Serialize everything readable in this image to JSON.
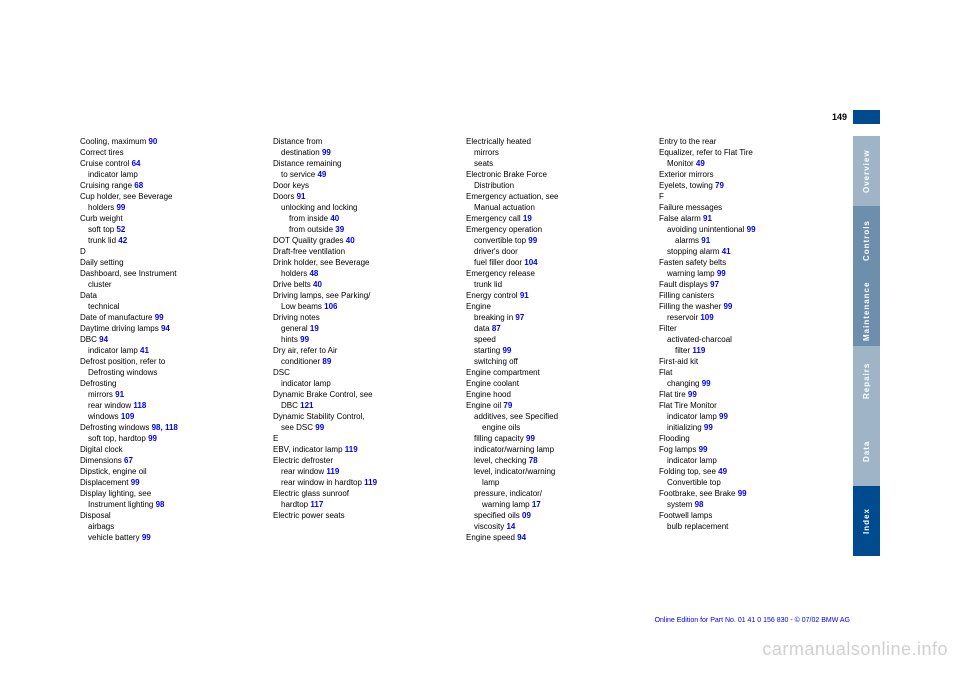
{
  "page_number": "149",
  "side_tabs": [
    "Overview",
    "Controls",
    "Maintenance",
    "Repairs",
    "Data",
    "Index"
  ],
  "columns": [
    [
      {
        "t": "Cooling, maximum",
        "p": "90",
        "s": 0
      },
      {
        "t": "Correct tires",
        "p": "",
        "s": 0
      },
      {
        "t": "Cruise control",
        "p": "64",
        "s": 0
      },
      {
        "t": "indicator lamp",
        "p": "",
        "s": 1
      },
      {
        "t": "Cruising range",
        "p": "68",
        "s": 0
      },
      {
        "t": "Cup holder, see Beverage",
        "p": "",
        "s": 0
      },
      {
        "t": "holders",
        "p": "99",
        "s": 1
      },
      {
        "t": "Curb weight",
        "p": "",
        "s": 0
      },
      {
        "t": "soft top",
        "p": "52",
        "s": 1
      },
      {
        "t": "trunk lid",
        "p": "42",
        "s": 1
      },
      {
        "t": "",
        "p": "",
        "s": 0
      },
      {
        "t": "D",
        "p": "",
        "s": 0
      },
      {
        "t": "Daily setting",
        "p": "",
        "s": 0
      },
      {
        "t": "Dashboard, see Instrument",
        "p": "",
        "s": 0
      },
      {
        "t": "cluster",
        "p": "",
        "s": 1
      },
      {
        "t": "Data",
        "p": "",
        "s": 0
      },
      {
        "t": "technical",
        "p": "",
        "s": 1
      },
      {
        "t": "Date of manufacture",
        "p": "99",
        "s": 0
      },
      {
        "t": "Daytime driving lamps",
        "p": "94",
        "s": 0
      },
      {
        "t": "DBC",
        "p": "94",
        "s": 0
      },
      {
        "t": "indicator lamp",
        "p": "41",
        "s": 1
      },
      {
        "t": "Defrost position, refer to",
        "p": "",
        "s": 0
      },
      {
        "t": "Defrosting windows",
        "p": "",
        "s": 1
      },
      {
        "t": "Defrosting",
        "p": "",
        "s": 0
      },
      {
        "t": "mirrors",
        "p": "91",
        "s": 1
      },
      {
        "t": "rear window",
        "p": "118",
        "s": 1
      },
      {
        "t": "windows",
        "p": "109",
        "s": 1
      },
      {
        "t": "Defrosting windows",
        "p": "98, 118",
        "s": 0
      },
      {
        "t": "soft top, hardtop",
        "p": "99",
        "s": 1
      },
      {
        "t": "Digital clock",
        "p": "",
        "s": 0
      },
      {
        "t": "Dimensions",
        "p": "67",
        "s": 0
      },
      {
        "t": "Dipstick, engine oil",
        "p": "",
        "s": 0
      },
      {
        "t": "Displacement",
        "p": "99",
        "s": 0
      },
      {
        "t": "Display lighting, see",
        "p": "",
        "s": 0
      },
      {
        "t": "Instrument lighting",
        "p": "98",
        "s": 1
      },
      {
        "t": "Disposal",
        "p": "",
        "s": 0
      },
      {
        "t": "airbags",
        "p": "",
        "s": 1
      },
      {
        "t": "vehicle battery",
        "p": "99",
        "s": 1
      }
    ],
    [
      {
        "t": "Distance from",
        "p": "",
        "s": 0
      },
      {
        "t": "destination",
        "p": "99",
        "s": 1
      },
      {
        "t": "Distance remaining",
        "p": "",
        "s": 0
      },
      {
        "t": "to service",
        "p": "49",
        "s": 1
      },
      {
        "t": "Door keys",
        "p": "",
        "s": 0
      },
      {
        "t": "Doors",
        "p": "91",
        "s": 0
      },
      {
        "t": "unlocking and locking",
        "p": "",
        "s": 1
      },
      {
        "t": "from inside",
        "p": "40",
        "s": 2
      },
      {
        "t": "from outside",
        "p": "39",
        "s": 2
      },
      {
        "t": "DOT Quality grades",
        "p": "40",
        "s": 0
      },
      {
        "t": "Draft-free ventilation",
        "p": "",
        "s": 0
      },
      {
        "t": "Drink holder, see Beverage",
        "p": "",
        "s": 0
      },
      {
        "t": "holders",
        "p": "48",
        "s": 1
      },
      {
        "t": "Drive belts",
        "p": "40",
        "s": 0
      },
      {
        "t": "Driving lamps, see Parking/",
        "p": "",
        "s": 0
      },
      {
        "t": "Low beams",
        "p": "106",
        "s": 1
      },
      {
        "t": "Driving notes",
        "p": "",
        "s": 0
      },
      {
        "t": "general",
        "p": "19",
        "s": 1
      },
      {
        "t": "hints",
        "p": "99",
        "s": 1
      },
      {
        "t": "Dry air, refer to Air",
        "p": "",
        "s": 0
      },
      {
        "t": "conditioner",
        "p": "89",
        "s": 1
      },
      {
        "t": "DSC",
        "p": "",
        "s": 0
      },
      {
        "t": "indicator lamp",
        "p": "",
        "s": 1
      },
      {
        "t": "Dynamic Brake Control, see",
        "p": "",
        "s": 0
      },
      {
        "t": "DBC",
        "p": "121",
        "s": 1
      },
      {
        "t": "Dynamic Stability Control,",
        "p": "",
        "s": 0
      },
      {
        "t": "see DSC",
        "p": "99",
        "s": 1
      },
      {
        "t": "",
        "p": "",
        "s": 0
      },
      {
        "t": "E",
        "p": "",
        "s": 0
      },
      {
        "t": "EBV, indicator lamp",
        "p": "119",
        "s": 0
      },
      {
        "t": "Electric defroster",
        "p": "",
        "s": 0
      },
      {
        "t": "rear window",
        "p": "119",
        "s": 1
      },
      {
        "t": "rear window in hardtop",
        "p": "119",
        "s": 1
      },
      {
        "t": "Electric glass sunroof",
        "p": "",
        "s": 0
      },
      {
        "t": "hardtop",
        "p": "117",
        "s": 1
      },
      {
        "t": "Electric power seats",
        "p": "",
        "s": 0
      }
    ],
    [
      {
        "t": "Electrically heated",
        "p": "",
        "s": 0
      },
      {
        "t": "mirrors",
        "p": "",
        "s": 1
      },
      {
        "t": "seats",
        "p": "",
        "s": 1
      },
      {
        "t": "Electronic Brake Force",
        "p": "",
        "s": 0
      },
      {
        "t": "Distribution",
        "p": "",
        "s": 1
      },
      {
        "t": "Emergency actuation, see",
        "p": "",
        "s": 0
      },
      {
        "t": "Manual actuation",
        "p": "",
        "s": 1
      },
      {
        "t": "Emergency call",
        "p": "19",
        "s": 0
      },
      {
        "t": "Emergency operation",
        "p": "",
        "s": 0
      },
      {
        "t": "convertible top",
        "p": "99",
        "s": 1
      },
      {
        "t": "driver's door",
        "p": "",
        "s": 1
      },
      {
        "t": "fuel filler door",
        "p": "104",
        "s": 1
      },
      {
        "t": "Emergency release",
        "p": "",
        "s": 0
      },
      {
        "t": "trunk lid",
        "p": "",
        "s": 1
      },
      {
        "t": "Energy control",
        "p": "91",
        "s": 0
      },
      {
        "t": "Engine",
        "p": "",
        "s": 0
      },
      {
        "t": "breaking in",
        "p": "97",
        "s": 1
      },
      {
        "t": "data",
        "p": "87",
        "s": 1
      },
      {
        "t": "speed",
        "p": "",
        "s": 1
      },
      {
        "t": "starting",
        "p": "99",
        "s": 1
      },
      {
        "t": "switching off",
        "p": "",
        "s": 1
      },
      {
        "t": "Engine compartment",
        "p": "",
        "s": 0
      },
      {
        "t": "Engine coolant",
        "p": "",
        "s": 0
      },
      {
        "t": "Engine hood",
        "p": "",
        "s": 0
      },
      {
        "t": "Engine oil",
        "p": "79",
        "s": 0
      },
      {
        "t": "additives, see Specified",
        "p": "",
        "s": 1
      },
      {
        "t": "engine oils",
        "p": "",
        "s": 2
      },
      {
        "t": "filling capacity",
        "p": "99",
        "s": 1
      },
      {
        "t": "indicator/warning lamp",
        "p": "",
        "s": 1
      },
      {
        "t": "level, checking",
        "p": "78",
        "s": 1
      },
      {
        "t": "level, indicator/warning",
        "p": "",
        "s": 1
      },
      {
        "t": "lamp",
        "p": "",
        "s": 2
      },
      {
        "t": "pressure, indicator/",
        "p": "",
        "s": 1
      },
      {
        "t": "warning lamp",
        "p": "17",
        "s": 2
      },
      {
        "t": "specified oils",
        "p": "09",
        "s": 1
      },
      {
        "t": "viscosity",
        "p": "14",
        "s": 1
      },
      {
        "t": "Engine speed",
        "p": "94",
        "s": 0
      }
    ],
    [
      {
        "t": "Entry to the rear",
        "p": "",
        "s": 0
      },
      {
        "t": "Equalizer, refer to Flat Tire",
        "p": "",
        "s": 0
      },
      {
        "t": "Monitor",
        "p": "49",
        "s": 1
      },
      {
        "t": "Exterior mirrors",
        "p": "",
        "s": 0
      },
      {
        "t": "Eyelets, towing",
        "p": "79",
        "s": 0
      },
      {
        "t": "",
        "p": "",
        "s": 0
      },
      {
        "t": "F",
        "p": "",
        "s": 0
      },
      {
        "t": "Failure messages",
        "p": "",
        "s": 0
      },
      {
        "t": "False alarm",
        "p": "91",
        "s": 0
      },
      {
        "t": "avoiding unintentional",
        "p": "99",
        "s": 1
      },
      {
        "t": "alarms",
        "p": "91",
        "s": 2
      },
      {
        "t": "stopping alarm",
        "p": "41",
        "s": 1
      },
      {
        "t": "Fasten safety belts",
        "p": "",
        "s": 0
      },
      {
        "t": "warning lamp",
        "p": "99",
        "s": 1
      },
      {
        "t": "Fault displays",
        "p": "97",
        "s": 0
      },
      {
        "t": "Filling canisters",
        "p": "",
        "s": 0
      },
      {
        "t": "Filling the washer",
        "p": "99",
        "s": 0
      },
      {
        "t": "reservoir",
        "p": "109",
        "s": 1
      },
      {
        "t": "Filter",
        "p": "",
        "s": 0
      },
      {
        "t": "activated-charcoal",
        "p": "",
        "s": 1
      },
      {
        "t": "filter",
        "p": "119",
        "s": 2
      },
      {
        "t": "First-aid kit",
        "p": "",
        "s": 0
      },
      {
        "t": "Flat",
        "p": "",
        "s": 0
      },
      {
        "t": "changing",
        "p": "99",
        "s": 1
      },
      {
        "t": "Flat tire",
        "p": "99",
        "s": 0
      },
      {
        "t": "Flat Tire Monitor",
        "p": "",
        "s": 0
      },
      {
        "t": "indicator lamp",
        "p": "99",
        "s": 1
      },
      {
        "t": "initializing",
        "p": "99",
        "s": 1
      },
      {
        "t": "Flooding",
        "p": "",
        "s": 0
      },
      {
        "t": "Fog lamps",
        "p": "99",
        "s": 0
      },
      {
        "t": "indicator lamp",
        "p": "",
        "s": 1
      },
      {
        "t": "Folding top, see",
        "p": "49",
        "s": 0
      },
      {
        "t": "Convertible top",
        "p": "",
        "s": 1
      },
      {
        "t": "Footbrake, see Brake",
        "p": "99",
        "s": 0
      },
      {
        "t": "system",
        "p": "98",
        "s": 1
      },
      {
        "t": "Footwell lamps",
        "p": "",
        "s": 0
      },
      {
        "t": "bulb replacement",
        "p": "",
        "s": 1
      }
    ]
  ],
  "footer_text": "Online Edition for Part No. 01 41 0 156 830 - © 07/02 BMW AG",
  "watermark": "carmanualsonline.info"
}
